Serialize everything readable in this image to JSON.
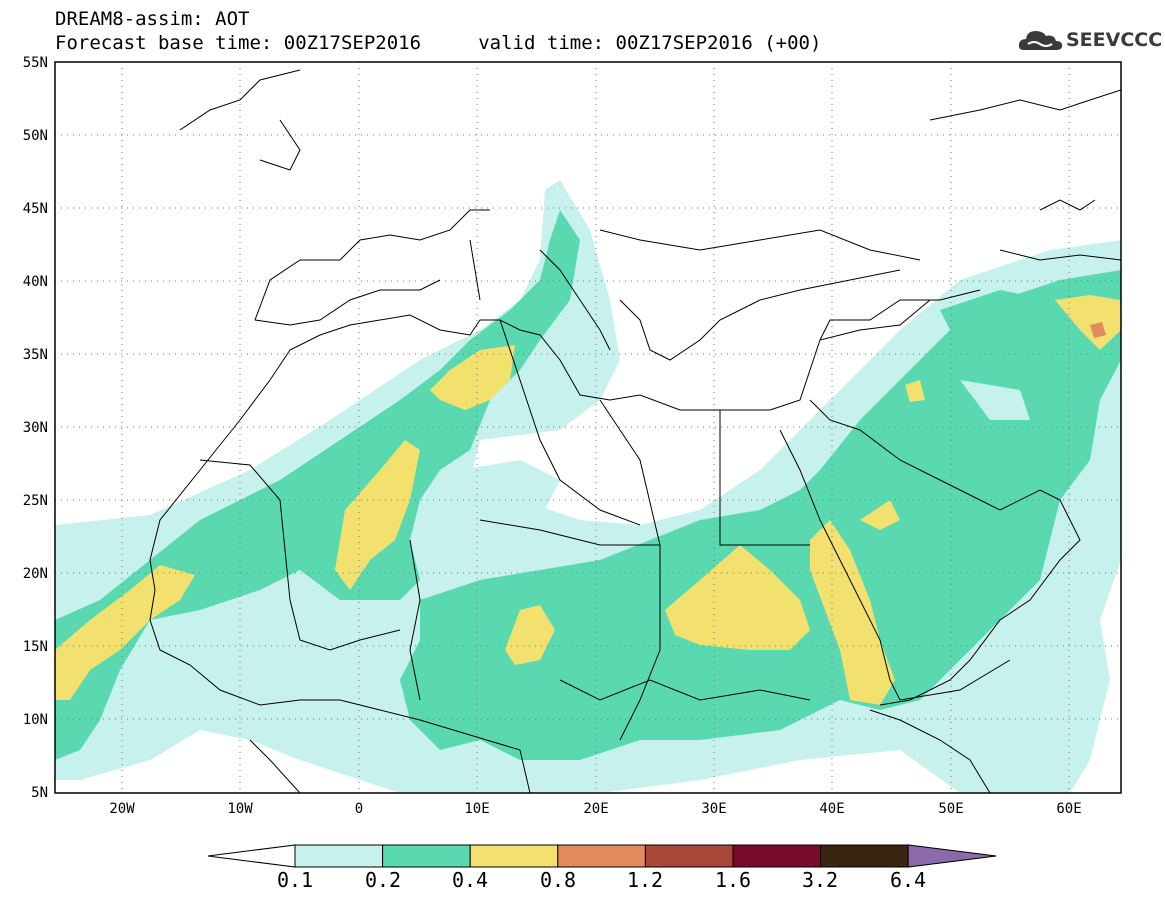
{
  "header": {
    "title_line1": "DREAM8-assim: AOT",
    "title_line2": "Forecast base time: 00Z17SEP2016     valid time: 00Z17SEP2016 (+00)",
    "logo_text": "SEEVCCC"
  },
  "map": {
    "lon_range": [
      -25,
      65
    ],
    "lat_range": [
      5,
      55
    ],
    "lat_ticks": [
      "55N",
      "50N",
      "45N",
      "40N",
      "35N",
      "30N",
      "25N",
      "20N",
      "15N",
      "10N",
      "5N"
    ],
    "lon_ticks": [
      "20W",
      "10W",
      "0",
      "10E",
      "20E",
      "30E",
      "40E",
      "50E",
      "60E"
    ],
    "grid": "dotted"
  },
  "colorbar": {
    "levels": [
      "0.1",
      "0.2",
      "0.4",
      "0.8",
      "1.2",
      "1.6",
      "3.2",
      "6.4"
    ],
    "colors": [
      "#ffffff",
      "#c7f1ec",
      "#5ad9b0",
      "#f3e16f",
      "#e48a5f",
      "#a8473a",
      "#7a0a2a",
      "#3b2410",
      "#8a6aa8"
    ]
  }
}
